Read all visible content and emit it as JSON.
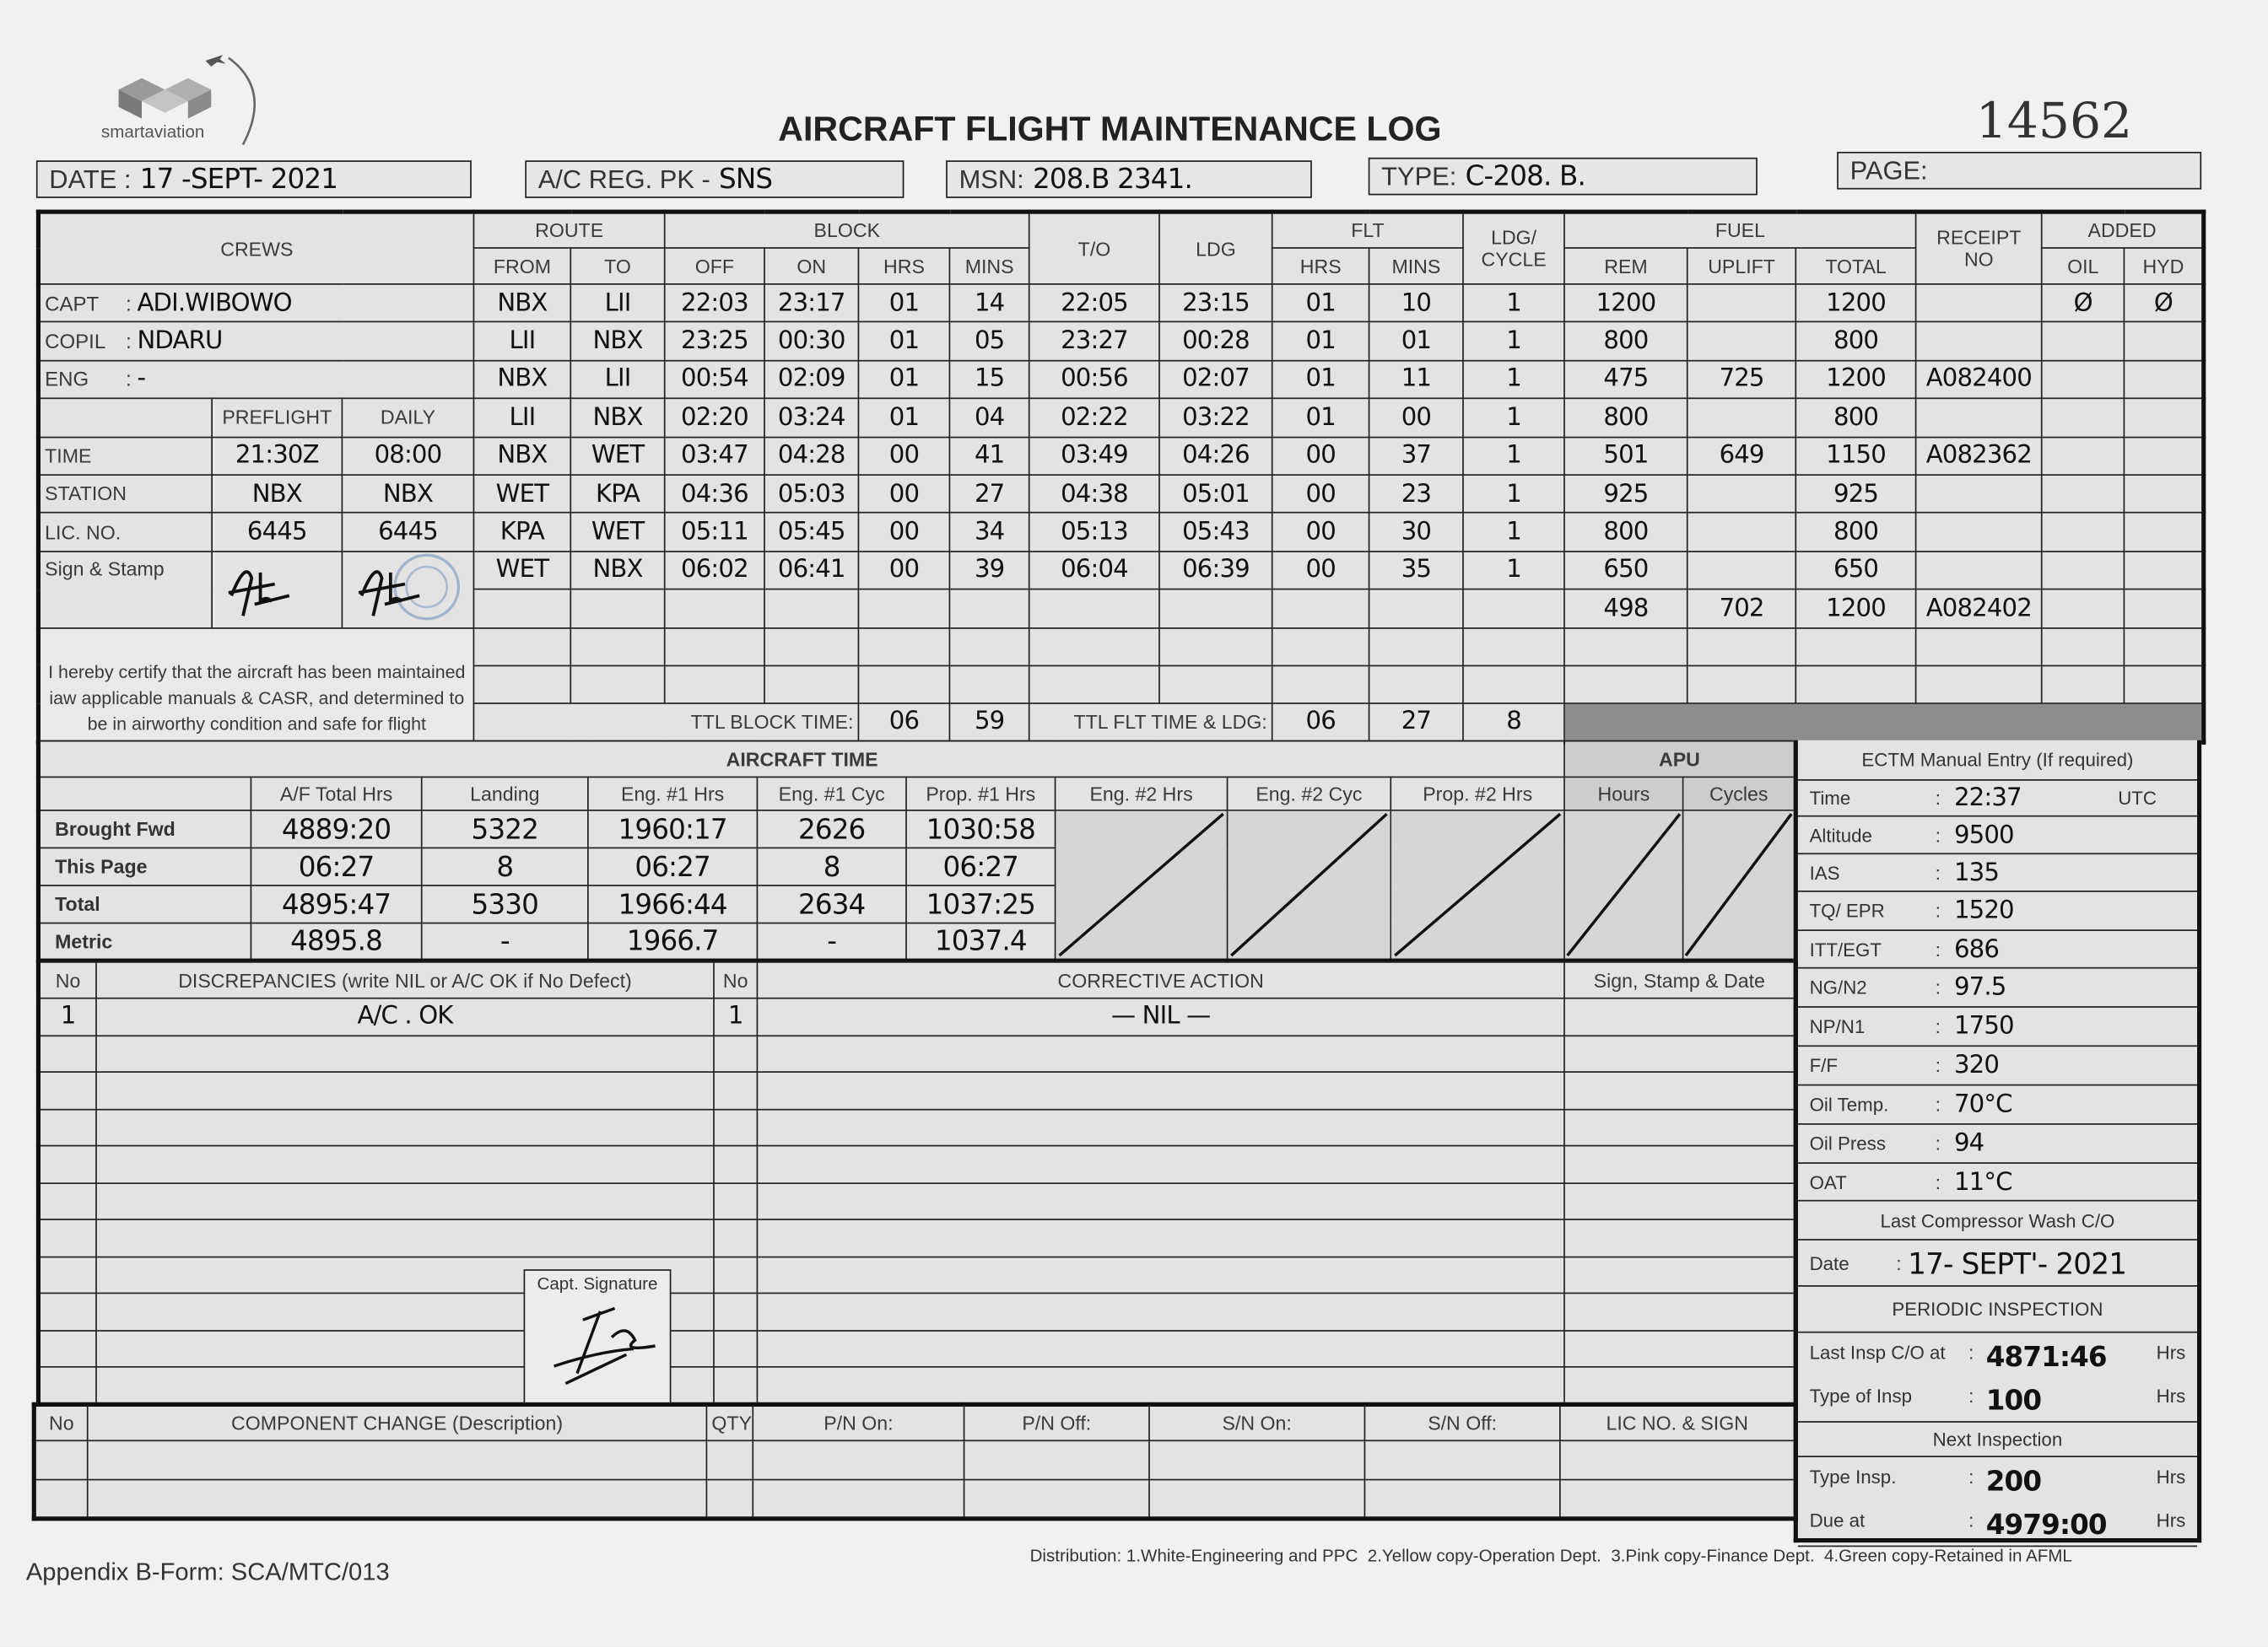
{
  "header": {
    "logo_text": "smartaviation",
    "title": "AIRCRAFT FLIGHT MAINTENANCE LOG",
    "serial": "14562",
    "date_label": "DATE :",
    "date_value": "17 -SEPT- 2021",
    "reg_label": "A/C REG. PK -",
    "reg_value": "SNS",
    "msn_label": "MSN:",
    "msn_value": "208.B 2341.",
    "type_label": "TYPE:",
    "type_value": "C-208. B.",
    "page_label": "PAGE:"
  },
  "main_headers": {
    "crews": "CREWS",
    "route": "ROUTE",
    "block": "BLOCK",
    "to": "T/O",
    "ldg": "LDG",
    "flt": "FLT",
    "ldg_cycle_1": "LDG/",
    "ldg_cycle_2": "CYCLE",
    "fuel": "FUEL",
    "receipt_1": "RECEIPT",
    "receipt_2": "NO",
    "added": "ADDED",
    "from_col": "FROM",
    "to_col": "TO",
    "off": "OFF",
    "on": "ON",
    "hrs": "HRS",
    "mins": "MINS",
    "rem": "REM",
    "uplift": "UPLIFT",
    "total": "TOTAL",
    "oil": "OIL",
    "hyd": "HYD"
  },
  "crew": [
    {
      "label": "CAPT",
      "value": "ADI.WIBOWO"
    },
    {
      "label": "COPIL",
      "value": "NDARU"
    },
    {
      "label": "ENG",
      "value": "-"
    }
  ],
  "crew_checks": {
    "preflight": "PREFLIGHT",
    "daily": "DAILY",
    "rows": [
      {
        "label": "TIME",
        "preflight": "21:30Z",
        "daily": "08:00"
      },
      {
        "label": "STATION",
        "preflight": "NBX",
        "daily": "NBX"
      },
      {
        "label": "LIC. NO.",
        "preflight": "6445",
        "daily": "6445"
      }
    ],
    "sign_label": "Sign & Stamp"
  },
  "certification": "I hereby certify that the aircraft has been maintained iaw applicable manuals & CASR, and determined to be in airworthy condition and safe for flight",
  "flights": [
    {
      "from": "NBX",
      "to": "LII",
      "off": "22:03",
      "on": "23:17",
      "block_hrs": "01",
      "block_mins": "14",
      "takeoff": "22:05",
      "landing": "23:15",
      "flt_hrs": "01",
      "flt_mins": "10",
      "cycle": "1"
    },
    {
      "from": "LII",
      "to": "NBX",
      "off": "23:25",
      "on": "00:30",
      "block_hrs": "01",
      "block_mins": "05",
      "takeoff": "23:27",
      "landing": "00:28",
      "flt_hrs": "01",
      "flt_mins": "01",
      "cycle": "1"
    },
    {
      "from": "NBX",
      "to": "LII",
      "off": "00:54",
      "on": "02:09",
      "block_hrs": "01",
      "block_mins": "15",
      "takeoff": "00:56",
      "landing": "02:07",
      "flt_hrs": "01",
      "flt_mins": "11",
      "cycle": "1"
    },
    {
      "from": "LII",
      "to": "NBX",
      "off": "02:20",
      "on": "03:24",
      "block_hrs": "01",
      "block_mins": "04",
      "takeoff": "02:22",
      "landing": "03:22",
      "flt_hrs": "01",
      "flt_mins": "00",
      "cycle": "1"
    },
    {
      "from": "NBX",
      "to": "WET",
      "off": "03:47",
      "on": "04:28",
      "block_hrs": "00",
      "block_mins": "41",
      "takeoff": "03:49",
      "landing": "04:26",
      "flt_hrs": "00",
      "flt_mins": "37",
      "cycle": "1"
    },
    {
      "from": "WET",
      "to": "KPA",
      "off": "04:36",
      "on": "05:03",
      "block_hrs": "00",
      "block_mins": "27",
      "takeoff": "04:38",
      "landing": "05:01",
      "flt_hrs": "00",
      "flt_mins": "23",
      "cycle": "1"
    },
    {
      "from": "KPA",
      "to": "WET",
      "off": "05:11",
      "on": "05:45",
      "block_hrs": "00",
      "block_mins": "34",
      "takeoff": "05:13",
      "landing": "05:43",
      "flt_hrs": "00",
      "flt_mins": "30",
      "cycle": "1"
    },
    {
      "from": "WET",
      "to": "NBX",
      "off": "06:02",
      "on": "06:41",
      "block_hrs": "00",
      "block_mins": "39",
      "takeoff": "06:04",
      "landing": "06:39",
      "flt_hrs": "00",
      "flt_mins": "35",
      "cycle": "1"
    }
  ],
  "fuel": [
    {
      "rem": "1200",
      "uplift": "",
      "total": "1200",
      "receipt": "",
      "oil": "Ø",
      "hyd": "Ø"
    },
    {
      "rem": "800",
      "uplift": "",
      "total": "800",
      "receipt": "",
      "oil": "",
      "hyd": ""
    },
    {
      "rem": "475",
      "uplift": "725",
      "total": "1200",
      "receipt": "A082400",
      "oil": "",
      "hyd": ""
    },
    {
      "rem": "800",
      "uplift": "",
      "total": "800",
      "receipt": "",
      "oil": "",
      "hyd": ""
    },
    {
      "rem": "501",
      "uplift": "649",
      "total": "1150",
      "receipt": "A082362",
      "oil": "",
      "hyd": ""
    },
    {
      "rem": "925",
      "uplift": "",
      "total": "925",
      "receipt": "",
      "oil": "",
      "hyd": ""
    },
    {
      "rem": "800",
      "uplift": "",
      "total": "800",
      "receipt": "",
      "oil": "",
      "hyd": ""
    },
    {
      "rem": "650",
      "uplift": "",
      "total": "650",
      "receipt": "",
      "oil": "",
      "hyd": ""
    },
    {
      "rem": "498",
      "uplift": "702",
      "total": "1200",
      "receipt": "A082402",
      "oil": "",
      "hyd": ""
    }
  ],
  "totals": {
    "block_label": "TTL BLOCK TIME:",
    "block_hrs": "06",
    "block_mins": "59",
    "flt_label": "TTL FLT TIME & LDG:",
    "flt_hrs": "06",
    "flt_mins": "27",
    "landings": "8"
  },
  "aircraft_time": {
    "title": "AIRCRAFT TIME",
    "apu_title": "APU",
    "columns": [
      "A/F Total Hrs",
      "Landing",
      "Eng. #1 Hrs",
      "Eng. #1 Cyc",
      "Prop. #1 Hrs",
      "Eng. #2 Hrs",
      "Eng. #2 Cyc",
      "Prop. #2 Hrs",
      "Hours",
      "Cycles"
    ],
    "rows": [
      {
        "label": "Brought Fwd",
        "values": [
          "4889:20",
          "5322",
          "1960:17",
          "2626",
          "1030:58"
        ]
      },
      {
        "label": "This Page",
        "values": [
          "06:27",
          "8",
          "06:27",
          "8",
          "06:27"
        ]
      },
      {
        "label": "Total",
        "values": [
          "4895:47",
          "5330",
          "1966:44",
          "2634",
          "1037:25"
        ]
      },
      {
        "label": "Metric",
        "values": [
          "4895.8",
          "-",
          "1966.7",
          "-",
          "1037.4"
        ]
      }
    ]
  },
  "ectm": {
    "title": "ECTM Manual Entry (If required)",
    "rows": [
      {
        "label": "Time",
        "value": "22:37",
        "unit": "UTC"
      },
      {
        "label": "Altitude",
        "value": "9500"
      },
      {
        "label": "IAS",
        "value": "135"
      },
      {
        "label": "TQ/ EPR",
        "value": "1520"
      },
      {
        "label": "ITT/EGT",
        "value": "686"
      },
      {
        "label": "NG/N2",
        "value": "97.5"
      },
      {
        "label": "NP/N1",
        "value": "1750"
      },
      {
        "label": "F/F",
        "value": "320"
      },
      {
        "label": "Oil Temp.",
        "value": "70°C"
      },
      {
        "label": "Oil Press",
        "value": "94"
      },
      {
        "label": "OAT",
        "value": "11°C"
      }
    ],
    "wash_title": "Last Compressor Wash C/O",
    "wash_label": "Date",
    "wash_value": "17- SEPT'- 2021",
    "periodic_title": "PERIODIC INSPECTION",
    "last_insp_label": "Last Insp C/O at",
    "last_insp_value": "4871:46",
    "type_insp_label": "Type of Insp",
    "type_insp_value": "100",
    "next_title": "Next Inspection",
    "next_type_label": "Type Insp.",
    "next_type_value": "200",
    "due_label": "Due at",
    "due_value": "4979:00",
    "hrs": "Hrs"
  },
  "discrepancies": {
    "no_header": "No",
    "desc_header": "DISCREPANCIES (write NIL or A/C OK if No Defect)",
    "no2_header": "No",
    "action_header": "CORRECTIVE ACTION",
    "sign_header": "Sign, Stamp & Date",
    "entries": [
      {
        "no": "1",
        "description": "A/C . OK",
        "no2": "1",
        "action": "— NIL —"
      }
    ],
    "capt_signature_label": "Capt. Signature"
  },
  "component_change": {
    "headers": [
      "No",
      "COMPONENT CHANGE (Description)",
      "QTY",
      "P/N On:",
      "P/N Off:",
      "S/N On:",
      "S/N Off:",
      "LIC NO. & SIGN"
    ]
  },
  "footer": {
    "form_id": "Appendix B-Form: SCA/MTC/013",
    "distribution": "Distribution: 1.White-Engineering and PPC  2.Yellow copy-Operation Dept.  3.Pink copy-Finance Dept.  4.Green copy-Retained in AFML"
  }
}
